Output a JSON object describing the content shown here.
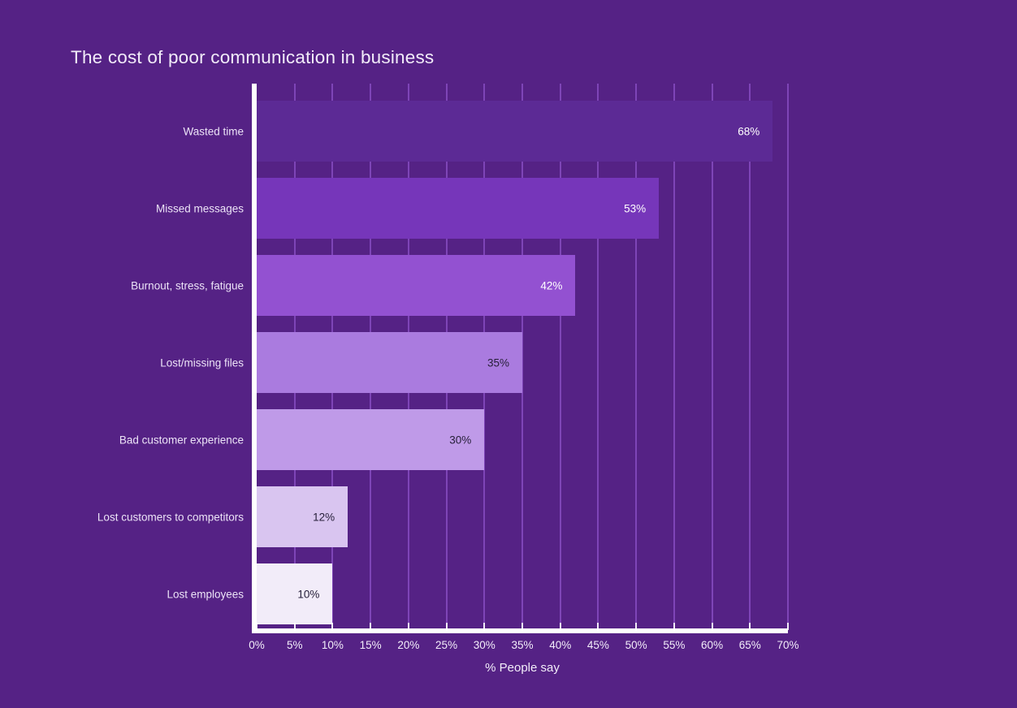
{
  "page": {
    "background_color": "#552285",
    "text_color": "#f2ecf9"
  },
  "chart_data": {
    "type": "bar",
    "orientation": "horizontal",
    "title": "The cost of poor communication in business",
    "xlabel": "% People say",
    "ylabel": "",
    "categories": [
      "Wasted time",
      "Missed messages",
      "Burnout, stress, fatigue",
      "Lost/missing files",
      "Bad customer experience",
      "Lost customers to competitors",
      "Lost employees"
    ],
    "values": [
      68,
      53,
      42,
      35,
      30,
      12,
      10
    ],
    "value_labels": [
      "68%",
      "53%",
      "42%",
      "35%",
      "30%",
      "12%",
      "10%"
    ],
    "bar_colors": [
      "#5c2a95",
      "#7636ba",
      "#9351d1",
      "#aa7bdf",
      "#bf9ae8",
      "#d9c5f0",
      "#f2ecf9"
    ],
    "value_label_colors": [
      "#ffffff",
      "#ffffff",
      "#ffffff",
      "#27203a",
      "#27203a",
      "#27203a",
      "#27203a"
    ],
    "xlim": [
      0,
      70
    ],
    "xticks": [
      0,
      5,
      10,
      15,
      20,
      25,
      30,
      35,
      40,
      45,
      50,
      55,
      60,
      65,
      70
    ],
    "xtick_labels": [
      "0%",
      "5%",
      "10%",
      "15%",
      "20%",
      "25%",
      "30%",
      "35%",
      "40%",
      "45%",
      "50%",
      "55%",
      "60%",
      "65%",
      "70%"
    ],
    "grid": true,
    "gridline_color": "#8c52c8",
    "axis_color": "#ffffff",
    "legend": "none"
  }
}
